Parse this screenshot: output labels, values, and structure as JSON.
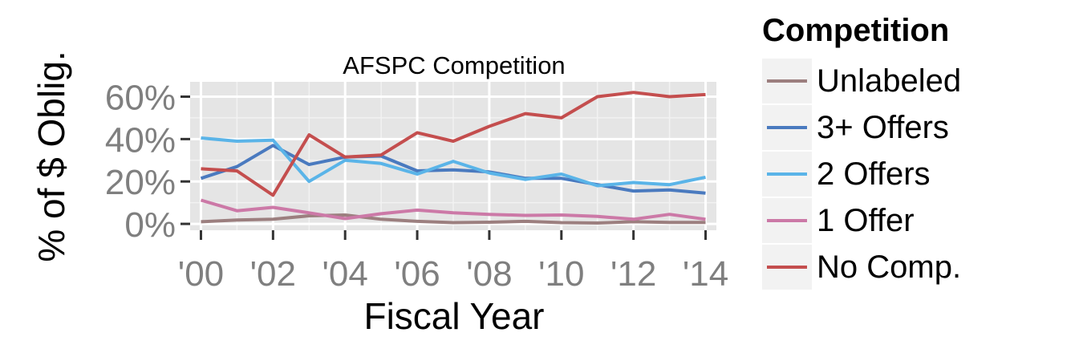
{
  "chart_data": {
    "type": "line",
    "title": "AFSPC Competition",
    "xlabel": "Fiscal Year",
    "ylabel": "% of $ Oblig.",
    "x": [
      2000,
      2001,
      2002,
      2003,
      2004,
      2005,
      2006,
      2007,
      2008,
      2009,
      2010,
      2011,
      2012,
      2013,
      2014
    ],
    "xticks": [
      2000,
      2002,
      2004,
      2006,
      2008,
      2010,
      2012,
      2014
    ],
    "xtick_labels": [
      "'00",
      "'02",
      "'04",
      "'06",
      "'08",
      "'10",
      "'12",
      "'14"
    ],
    "xlim": [
      1999.7,
      2014.3
    ],
    "ylim": [
      -0.03,
      0.67
    ],
    "yticks": [
      0,
      0.2,
      0.4,
      0.6
    ],
    "ytick_labels": [
      "0%",
      "20%",
      "40%",
      "60%"
    ],
    "grid": true,
    "legend_title": "Competition",
    "legend_position": "right",
    "series": [
      {
        "name": "Unlabeled",
        "color": "#9c7f7f",
        "values": [
          0.01,
          0.018,
          0.022,
          0.038,
          0.042,
          0.022,
          0.012,
          0.006,
          0.008,
          0.012,
          0.006,
          0.004,
          0.01,
          0.007,
          0.007
        ]
      },
      {
        "name": "3+ Offers",
        "color": "#4a7abf",
        "values": [
          0.215,
          0.27,
          0.37,
          0.28,
          0.315,
          0.32,
          0.25,
          0.255,
          0.245,
          0.215,
          0.215,
          0.185,
          0.155,
          0.16,
          0.145
        ]
      },
      {
        "name": "2 Offers",
        "color": "#5ab4e8",
        "values": [
          0.405,
          0.39,
          0.395,
          0.2,
          0.3,
          0.285,
          0.235,
          0.295,
          0.24,
          0.21,
          0.235,
          0.18,
          0.195,
          0.185,
          0.22
        ]
      },
      {
        "name": "1 Offer",
        "color": "#cc79a7",
        "values": [
          0.112,
          0.062,
          0.078,
          0.052,
          0.025,
          0.048,
          0.065,
          0.052,
          0.045,
          0.04,
          0.042,
          0.035,
          0.022,
          0.045,
          0.022
        ]
      },
      {
        "name": "No Comp.",
        "color": "#c44e4e",
        "values": [
          0.26,
          0.25,
          0.135,
          0.42,
          0.315,
          0.325,
          0.43,
          0.39,
          0.46,
          0.52,
          0.5,
          0.6,
          0.62,
          0.6,
          0.61
        ]
      }
    ]
  }
}
